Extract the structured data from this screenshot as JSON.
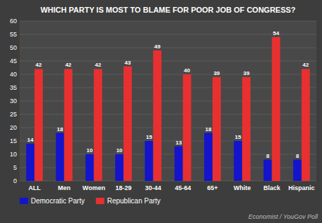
{
  "chart_data": {
    "type": "bar",
    "title": "WHICH PARTY IS MOST TO BLAME FOR POOR JOB OF CONGRESS?",
    "categories": [
      "ALL",
      "Men",
      "Women",
      "18-29",
      "30-44",
      "45-64",
      "65+",
      "White",
      "Black",
      "Hispanic"
    ],
    "series": [
      {
        "name": "Democratic Party",
        "color": "#1414cc",
        "values": [
          14,
          18,
          10,
          10,
          15,
          13,
          18,
          15,
          8,
          8
        ]
      },
      {
        "name": "Republican Party",
        "color": "#e83030",
        "values": [
          42,
          42,
          42,
          43,
          49,
          40,
          39,
          39,
          54,
          42
        ]
      }
    ],
    "ylim": [
      0,
      60
    ],
    "yticks": [
      0,
      5,
      10,
      15,
      20,
      25,
      30,
      35,
      40,
      45,
      50,
      55,
      60
    ],
    "grid": true,
    "data_labels": true,
    "legend": "bottom",
    "annotations": [
      "Economist / YouGov Poll"
    ]
  }
}
